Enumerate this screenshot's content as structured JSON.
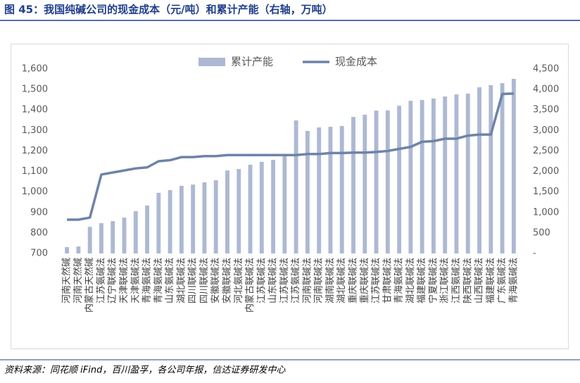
{
  "chart_data": {
    "type": "bar_line",
    "title": "图 45：我国纯碱公司的现金成本（元/吨）和累计产能（右轴，万吨）",
    "source": "资料来源：同花顺 iFind，百川盈孚，各公司年报，信达证券研发中心",
    "categories": [
      "河南天然碱",
      "河南天然碱",
      "内蒙古天然碱",
      "江苏氨碱法",
      "辽宁联碱法",
      "天津联碱法",
      "天津氨碱法",
      "青海氨碱法",
      "青海氨碱法",
      "山东氨碱法",
      "湖北联碱法",
      "四川联碱法",
      "四川联碱法",
      "安徽联碱法",
      "安徽联碱法",
      "河北氨碱法",
      "内蒙古联碱法",
      "江苏联碱法",
      "山东联碱法",
      "江苏联碱法",
      "江苏氨碱法",
      "河南联碱法",
      "河南联碱法",
      "湖南联碱法",
      "湖北联碱法",
      "重庆联碱法",
      "重庆联碱法",
      "江苏联碱法",
      "甘肃联碱法",
      "青海氨碱法",
      "湖北联碱法",
      "福建联碱法",
      "宁夏联碱法",
      "浙江联碱法",
      "江西氨碱法",
      "陕西联碱法",
      "山西联碱法",
      "福建联碱法",
      "广东氨碱法",
      "青海氨碱法"
    ],
    "series": [
      {
        "name": "累计产能",
        "type": "bar",
        "axis": "y2",
        "color": "#adb9d3",
        "values": [
          155,
          170,
          650,
          740,
          790,
          875,
          1030,
          1170,
          1480,
          1545,
          1650,
          1680,
          1735,
          1785,
          2025,
          2060,
          2165,
          2235,
          2285,
          2370,
          3245,
          2990,
          3075,
          3090,
          3110,
          3330,
          3385,
          3485,
          3490,
          3605,
          3725,
          3745,
          3780,
          3830,
          3880,
          3900,
          4055,
          4105,
          4155,
          4260
        ]
      },
      {
        "name": "现金成本",
        "type": "line",
        "color": "#6e83a8",
        "values": [
          865,
          865,
          875,
          1085,
          1095,
          1105,
          1115,
          1120,
          1150,
          1155,
          1170,
          1170,
          1175,
          1175,
          1180,
          1180,
          1180,
          1180,
          1180,
          1180,
          1180,
          1185,
          1185,
          1190,
          1190,
          1192,
          1192,
          1195,
          1200,
          1210,
          1220,
          1245,
          1248,
          1260,
          1260,
          1275,
          1280,
          1280,
          1478,
          1480
        ]
      }
    ],
    "ylim": [
      700,
      1600
    ],
    "yticks": [
      700,
      800,
      900,
      {
        "value": 1000,
        "label": "1,000"
      },
      {
        "value": 1100,
        "label": "1,100"
      },
      {
        "value": 1200,
        "label": "1,200"
      },
      {
        "value": 1300,
        "label": "1,300"
      },
      {
        "value": 1400,
        "label": "1,400"
      },
      {
        "value": 1500,
        "label": "1,500"
      },
      {
        "value": 1600,
        "label": "1,600"
      }
    ],
    "y2lim": [
      0,
      4500
    ],
    "y2ticks": [
      {
        "value": 0,
        "label": "-"
      },
      500,
      {
        "value": 1000,
        "label": "1,000"
      },
      {
        "value": 1500,
        "label": "1,500"
      },
      {
        "value": 2000,
        "label": "2,000"
      },
      {
        "value": 2500,
        "label": "2,500"
      },
      {
        "value": 3000,
        "label": "3,000"
      },
      {
        "value": 3500,
        "label": "3,500"
      },
      {
        "value": 4000,
        "label": "4,000"
      },
      {
        "value": 4500,
        "label": "4,500"
      }
    ],
    "grid": false,
    "legend": "top"
  }
}
